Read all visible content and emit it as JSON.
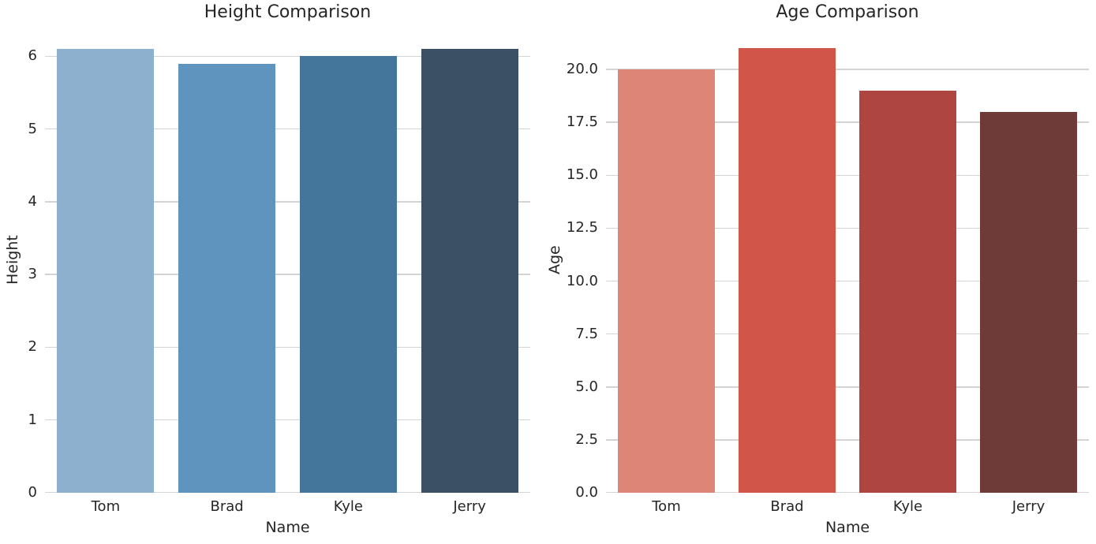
{
  "figure": {
    "background": "#ffffff",
    "text_color": "#262626",
    "grid_color": "#d3d3d3"
  },
  "chart_data": [
    {
      "type": "bar",
      "title": "Height Comparison",
      "xlabel": "Name",
      "ylabel": "Height",
      "categories": [
        "Tom",
        "Brad",
        "Kyle",
        "Jerry"
      ],
      "values": [
        6.1,
        5.9,
        6.0,
        6.1
      ],
      "bar_colors": [
        "#8cb0cd",
        "#5e94bd",
        "#44759b",
        "#3b5064"
      ],
      "yticks": [
        0,
        1,
        2,
        3,
        4,
        5,
        6
      ],
      "ytick_labels": [
        "0",
        "1",
        "2",
        "3",
        "4",
        "5",
        "6"
      ],
      "ylim": [
        0,
        6.405
      ],
      "bar_rel_width": 0.8,
      "grid": "horizontal",
      "legend": "none"
    },
    {
      "type": "bar",
      "title": "Age Comparison",
      "xlabel": "Name",
      "ylabel": "Age",
      "categories": [
        "Tom",
        "Brad",
        "Kyle",
        "Jerry"
      ],
      "values": [
        20,
        21,
        19,
        18
      ],
      "bar_colors": [
        "#dd8576",
        "#d15649",
        "#ae4541",
        "#6e3b39"
      ],
      "yticks": [
        0,
        2.5,
        5,
        7.5,
        10,
        12.5,
        15,
        17.5,
        20
      ],
      "ytick_labels": [
        "0.0",
        "2.5",
        "5.0",
        "7.5",
        "10.0",
        "12.5",
        "15.0",
        "17.5",
        "20.0"
      ],
      "ylim": [
        0,
        22.05
      ],
      "bar_rel_width": 0.8,
      "grid": "horizontal",
      "legend": "none"
    }
  ]
}
